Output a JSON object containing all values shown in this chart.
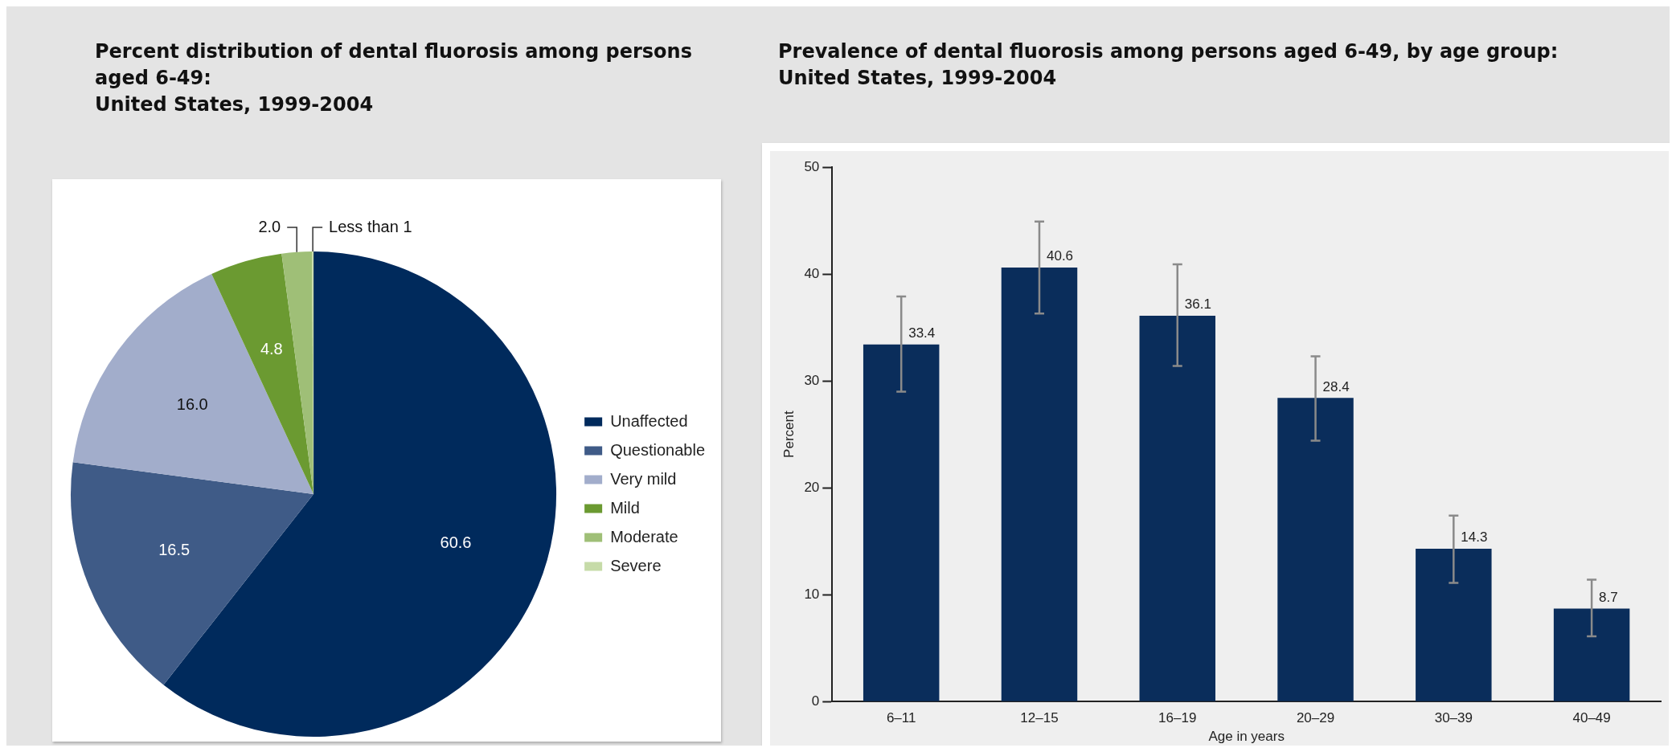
{
  "chart_data": [
    {
      "type": "pie",
      "title": "Percent distribution of dental fluorosis among persons\naged 6-49:\nUnited States, 1999-2004",
      "categories": [
        "Unaffected",
        "Questionable",
        "Very mild",
        "Mild",
        "Moderate",
        "Severe"
      ],
      "values": [
        60.6,
        16.5,
        16.0,
        4.8,
        2.0,
        0.1
      ],
      "colors": [
        "#002a5c",
        "#3f5b87",
        "#a2adcb",
        "#6b9a31",
        "#9fbf77",
        "#c6dba8"
      ],
      "value_labels": [
        "60.6",
        "16.5",
        "16.0",
        "4.8",
        "2.0",
        "Less than 1"
      ],
      "legend": "right"
    },
    {
      "type": "bar",
      "title": "Prevalence of dental fluorosis among persons aged 6-49, by age group:\nUnited States, 1999-2004",
      "xlabel": "Age in years",
      "ylabel": "Percent",
      "categories": [
        "6–11",
        "12–15",
        "16–19",
        "20–29",
        "30–39",
        "40–49"
      ],
      "values": [
        33.4,
        40.6,
        36.1,
        28.4,
        14.3,
        8.7
      ],
      "color": "#0a2d5b",
      "errors": [
        [
          29.0,
          37.9
        ],
        [
          36.3,
          44.9
        ],
        [
          31.4,
          40.9
        ],
        [
          24.4,
          32.3
        ],
        [
          11.1,
          17.4
        ],
        [
          6.1,
          11.4
        ]
      ],
      "ylim": [
        0,
        50
      ],
      "yticks": [
        0,
        10,
        20,
        30,
        40,
        50
      ],
      "data_labels": true,
      "grid": false
    }
  ]
}
